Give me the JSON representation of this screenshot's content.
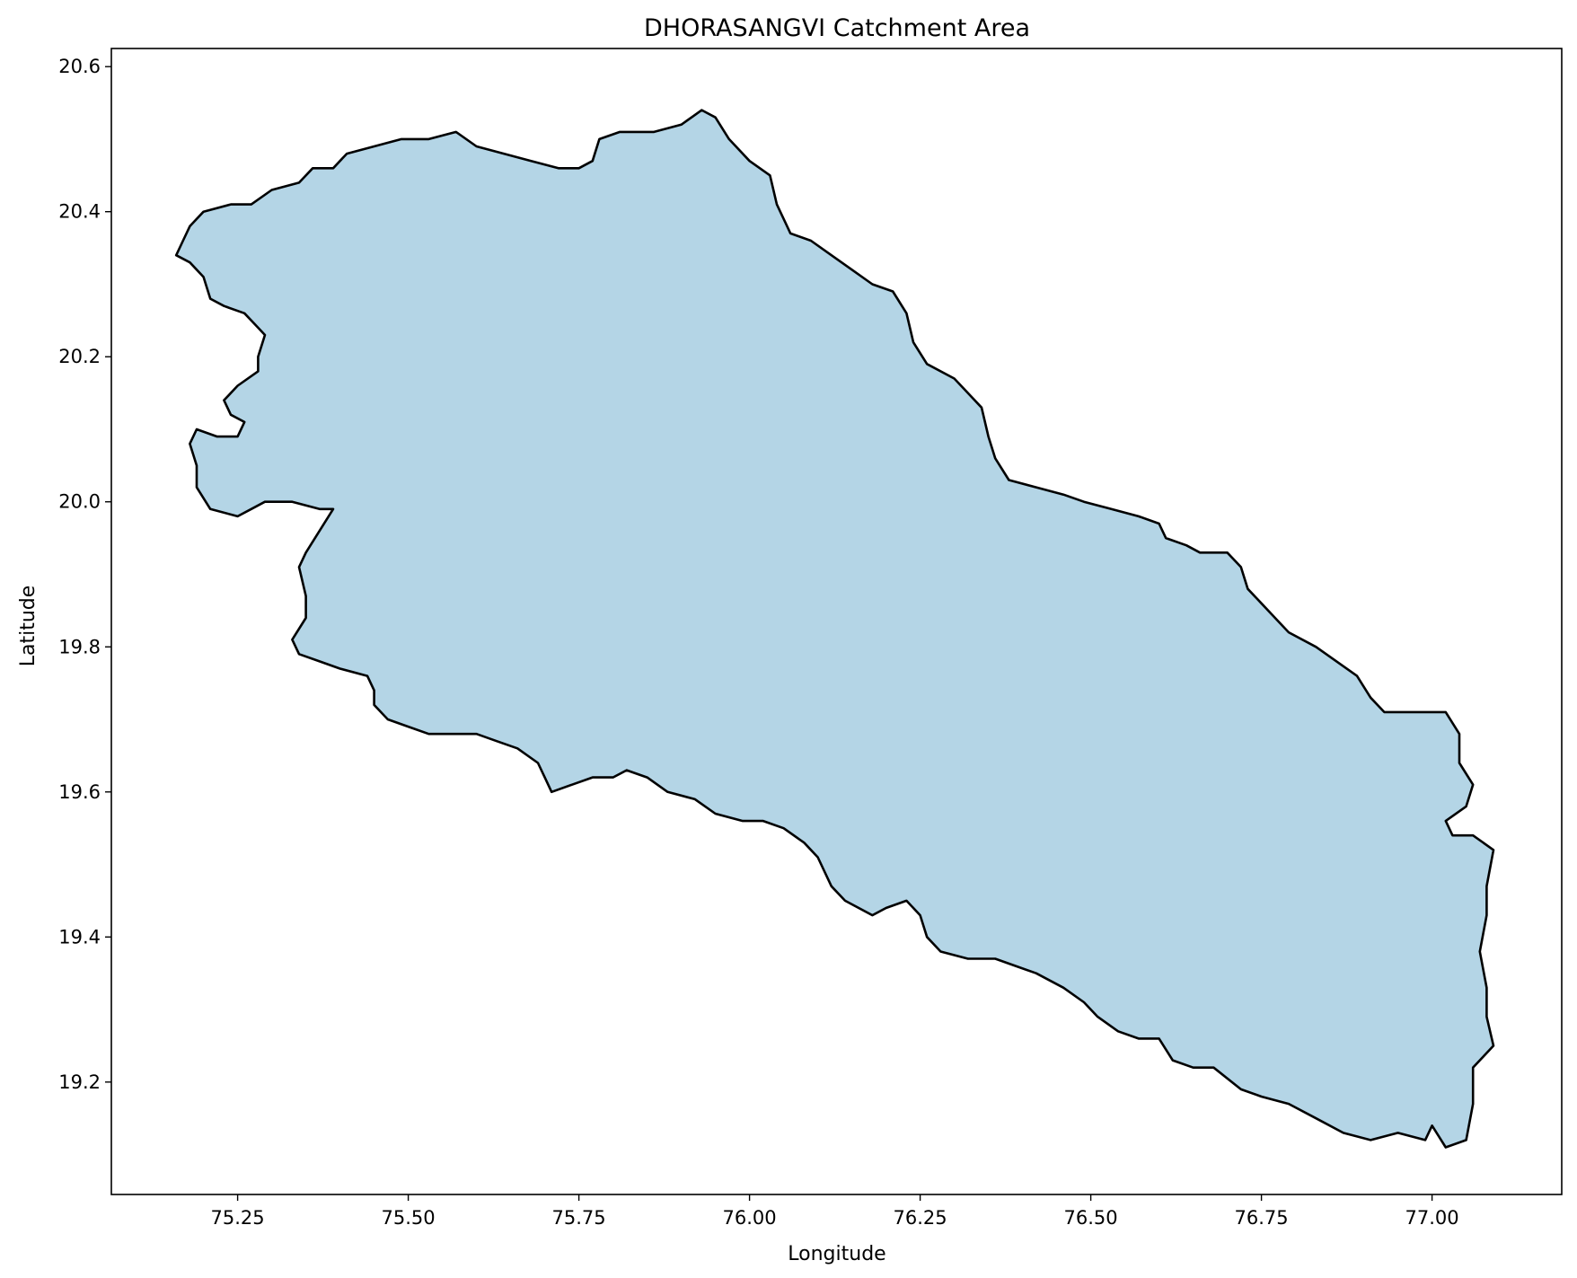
{
  "chart_data": {
    "type": "map",
    "title": "DHORASANGVI Catchment Area",
    "xlabel": "Longitude",
    "ylabel": "Latitude",
    "xlim": [
      75.065,
      77.19
    ],
    "ylim": [
      19.045,
      20.625
    ],
    "xticks": [
      {
        "value": 75.25,
        "label": "75.25"
      },
      {
        "value": 75.5,
        "label": "75.50"
      },
      {
        "value": 75.75,
        "label": "75.75"
      },
      {
        "value": 76.0,
        "label": "76.00"
      },
      {
        "value": 76.25,
        "label": "76.25"
      },
      {
        "value": 76.5,
        "label": "76.50"
      },
      {
        "value": 76.75,
        "label": "76.75"
      },
      {
        "value": 77.0,
        "label": "77.00"
      }
    ],
    "yticks": [
      {
        "value": 19.2,
        "label": "19.2"
      },
      {
        "value": 19.4,
        "label": "19.4"
      },
      {
        "value": 19.6,
        "label": "19.6"
      },
      {
        "value": 19.8,
        "label": "19.8"
      },
      {
        "value": 20.0,
        "label": "20.0"
      },
      {
        "value": 20.2,
        "label": "20.2"
      },
      {
        "value": 20.4,
        "label": "20.4"
      },
      {
        "value": 20.6,
        "label": "20.6"
      }
    ],
    "grid": false,
    "fill_color": "#b4d5e6",
    "edge_color": "#000000",
    "polygon": [
      [
        75.16,
        20.34
      ],
      [
        75.18,
        20.33
      ],
      [
        75.2,
        20.31
      ],
      [
        75.21,
        20.28
      ],
      [
        75.23,
        20.27
      ],
      [
        75.26,
        20.26
      ],
      [
        75.28,
        20.24
      ],
      [
        75.29,
        20.23
      ],
      [
        75.28,
        20.2
      ],
      [
        75.28,
        20.18
      ],
      [
        75.25,
        20.16
      ],
      [
        75.23,
        20.14
      ],
      [
        75.24,
        20.12
      ],
      [
        75.26,
        20.11
      ],
      [
        75.25,
        20.09
      ],
      [
        75.22,
        20.09
      ],
      [
        75.19,
        20.1
      ],
      [
        75.18,
        20.08
      ],
      [
        75.19,
        20.05
      ],
      [
        75.19,
        20.02
      ],
      [
        75.21,
        19.99
      ],
      [
        75.25,
        19.98
      ],
      [
        75.27,
        19.99
      ],
      [
        75.29,
        20.0
      ],
      [
        75.33,
        20.0
      ],
      [
        75.37,
        19.99
      ],
      [
        75.39,
        19.99
      ],
      [
        75.37,
        19.96
      ],
      [
        75.35,
        19.93
      ],
      [
        75.34,
        19.91
      ],
      [
        75.35,
        19.87
      ],
      [
        75.35,
        19.84
      ],
      [
        75.33,
        19.81
      ],
      [
        75.34,
        19.79
      ],
      [
        75.37,
        19.78
      ],
      [
        75.4,
        19.77
      ],
      [
        75.44,
        19.76
      ],
      [
        75.45,
        19.74
      ],
      [
        75.45,
        19.72
      ],
      [
        75.47,
        19.7
      ],
      [
        75.5,
        19.69
      ],
      [
        75.53,
        19.68
      ],
      [
        75.56,
        19.68
      ],
      [
        75.6,
        19.68
      ],
      [
        75.63,
        19.67
      ],
      [
        75.66,
        19.66
      ],
      [
        75.69,
        19.64
      ],
      [
        75.7,
        19.62
      ],
      [
        75.71,
        19.6
      ],
      [
        75.74,
        19.61
      ],
      [
        75.77,
        19.62
      ],
      [
        75.8,
        19.62
      ],
      [
        75.82,
        19.63
      ],
      [
        75.85,
        19.62
      ],
      [
        75.88,
        19.6
      ],
      [
        75.92,
        19.59
      ],
      [
        75.95,
        19.57
      ],
      [
        75.99,
        19.56
      ],
      [
        76.02,
        19.56
      ],
      [
        76.05,
        19.55
      ],
      [
        76.08,
        19.53
      ],
      [
        76.1,
        19.51
      ],
      [
        76.12,
        19.47
      ],
      [
        76.14,
        19.45
      ],
      [
        76.18,
        19.43
      ],
      [
        76.2,
        19.44
      ],
      [
        76.23,
        19.45
      ],
      [
        76.25,
        19.43
      ],
      [
        76.26,
        19.4
      ],
      [
        76.28,
        19.38
      ],
      [
        76.32,
        19.37
      ],
      [
        76.36,
        19.37
      ],
      [
        76.39,
        19.36
      ],
      [
        76.42,
        19.35
      ],
      [
        76.46,
        19.33
      ],
      [
        76.49,
        19.31
      ],
      [
        76.51,
        19.29
      ],
      [
        76.54,
        19.27
      ],
      [
        76.57,
        19.26
      ],
      [
        76.6,
        19.26
      ],
      [
        76.62,
        19.23
      ],
      [
        76.65,
        19.22
      ],
      [
        76.68,
        19.22
      ],
      [
        76.72,
        19.19
      ],
      [
        76.75,
        19.18
      ],
      [
        76.79,
        19.17
      ],
      [
        76.83,
        19.15
      ],
      [
        76.87,
        19.13
      ],
      [
        76.91,
        19.12
      ],
      [
        76.95,
        19.13
      ],
      [
        76.99,
        19.12
      ],
      [
        77.0,
        19.14
      ],
      [
        77.02,
        19.11
      ],
      [
        77.05,
        19.12
      ],
      [
        77.06,
        19.17
      ],
      [
        77.06,
        19.22
      ],
      [
        77.09,
        19.25
      ],
      [
        77.08,
        19.29
      ],
      [
        77.08,
        19.33
      ],
      [
        77.07,
        19.38
      ],
      [
        77.08,
        19.43
      ],
      [
        77.08,
        19.47
      ],
      [
        77.09,
        19.52
      ],
      [
        77.06,
        19.54
      ],
      [
        77.03,
        19.54
      ],
      [
        77.02,
        19.56
      ],
      [
        77.05,
        19.58
      ],
      [
        77.06,
        19.61
      ],
      [
        77.04,
        19.64
      ],
      [
        77.04,
        19.68
      ],
      [
        77.02,
        19.71
      ],
      [
        76.99,
        19.71
      ],
      [
        76.96,
        19.71
      ],
      [
        76.93,
        19.71
      ],
      [
        76.91,
        19.73
      ],
      [
        76.89,
        19.76
      ],
      [
        76.86,
        19.78
      ],
      [
        76.83,
        19.8
      ],
      [
        76.79,
        19.82
      ],
      [
        76.77,
        19.84
      ],
      [
        76.75,
        19.86
      ],
      [
        76.73,
        19.88
      ],
      [
        76.72,
        19.91
      ],
      [
        76.7,
        19.93
      ],
      [
        76.66,
        19.93
      ],
      [
        76.64,
        19.94
      ],
      [
        76.61,
        19.95
      ],
      [
        76.6,
        19.97
      ],
      [
        76.57,
        19.98
      ],
      [
        76.53,
        19.99
      ],
      [
        76.49,
        20.0
      ],
      [
        76.46,
        20.01
      ],
      [
        76.42,
        20.02
      ],
      [
        76.38,
        20.03
      ],
      [
        76.36,
        20.06
      ],
      [
        76.35,
        20.09
      ],
      [
        76.34,
        20.13
      ],
      [
        76.32,
        20.15
      ],
      [
        76.3,
        20.17
      ],
      [
        76.26,
        20.19
      ],
      [
        76.24,
        20.22
      ],
      [
        76.23,
        20.26
      ],
      [
        76.21,
        20.29
      ],
      [
        76.18,
        20.3
      ],
      [
        76.15,
        20.32
      ],
      [
        76.12,
        20.34
      ],
      [
        76.09,
        20.36
      ],
      [
        76.06,
        20.37
      ],
      [
        76.04,
        20.41
      ],
      [
        76.03,
        20.45
      ],
      [
        76.0,
        20.47
      ],
      [
        75.97,
        20.5
      ],
      [
        75.95,
        20.53
      ],
      [
        75.93,
        20.54
      ],
      [
        75.9,
        20.52
      ],
      [
        75.86,
        20.51
      ],
      [
        75.81,
        20.51
      ],
      [
        75.78,
        20.5
      ],
      [
        75.77,
        20.47
      ],
      [
        75.75,
        20.46
      ],
      [
        75.72,
        20.46
      ],
      [
        75.68,
        20.47
      ],
      [
        75.64,
        20.48
      ],
      [
        75.6,
        20.49
      ],
      [
        75.57,
        20.51
      ],
      [
        75.53,
        20.5
      ],
      [
        75.49,
        20.5
      ],
      [
        75.45,
        20.49
      ],
      [
        75.41,
        20.48
      ],
      [
        75.39,
        20.46
      ],
      [
        75.36,
        20.46
      ],
      [
        75.34,
        20.44
      ],
      [
        75.3,
        20.43
      ],
      [
        75.27,
        20.41
      ],
      [
        75.24,
        20.41
      ],
      [
        75.2,
        20.4
      ],
      [
        75.18,
        20.38
      ],
      [
        75.17,
        20.36
      ],
      [
        75.16,
        20.34
      ]
    ]
  }
}
